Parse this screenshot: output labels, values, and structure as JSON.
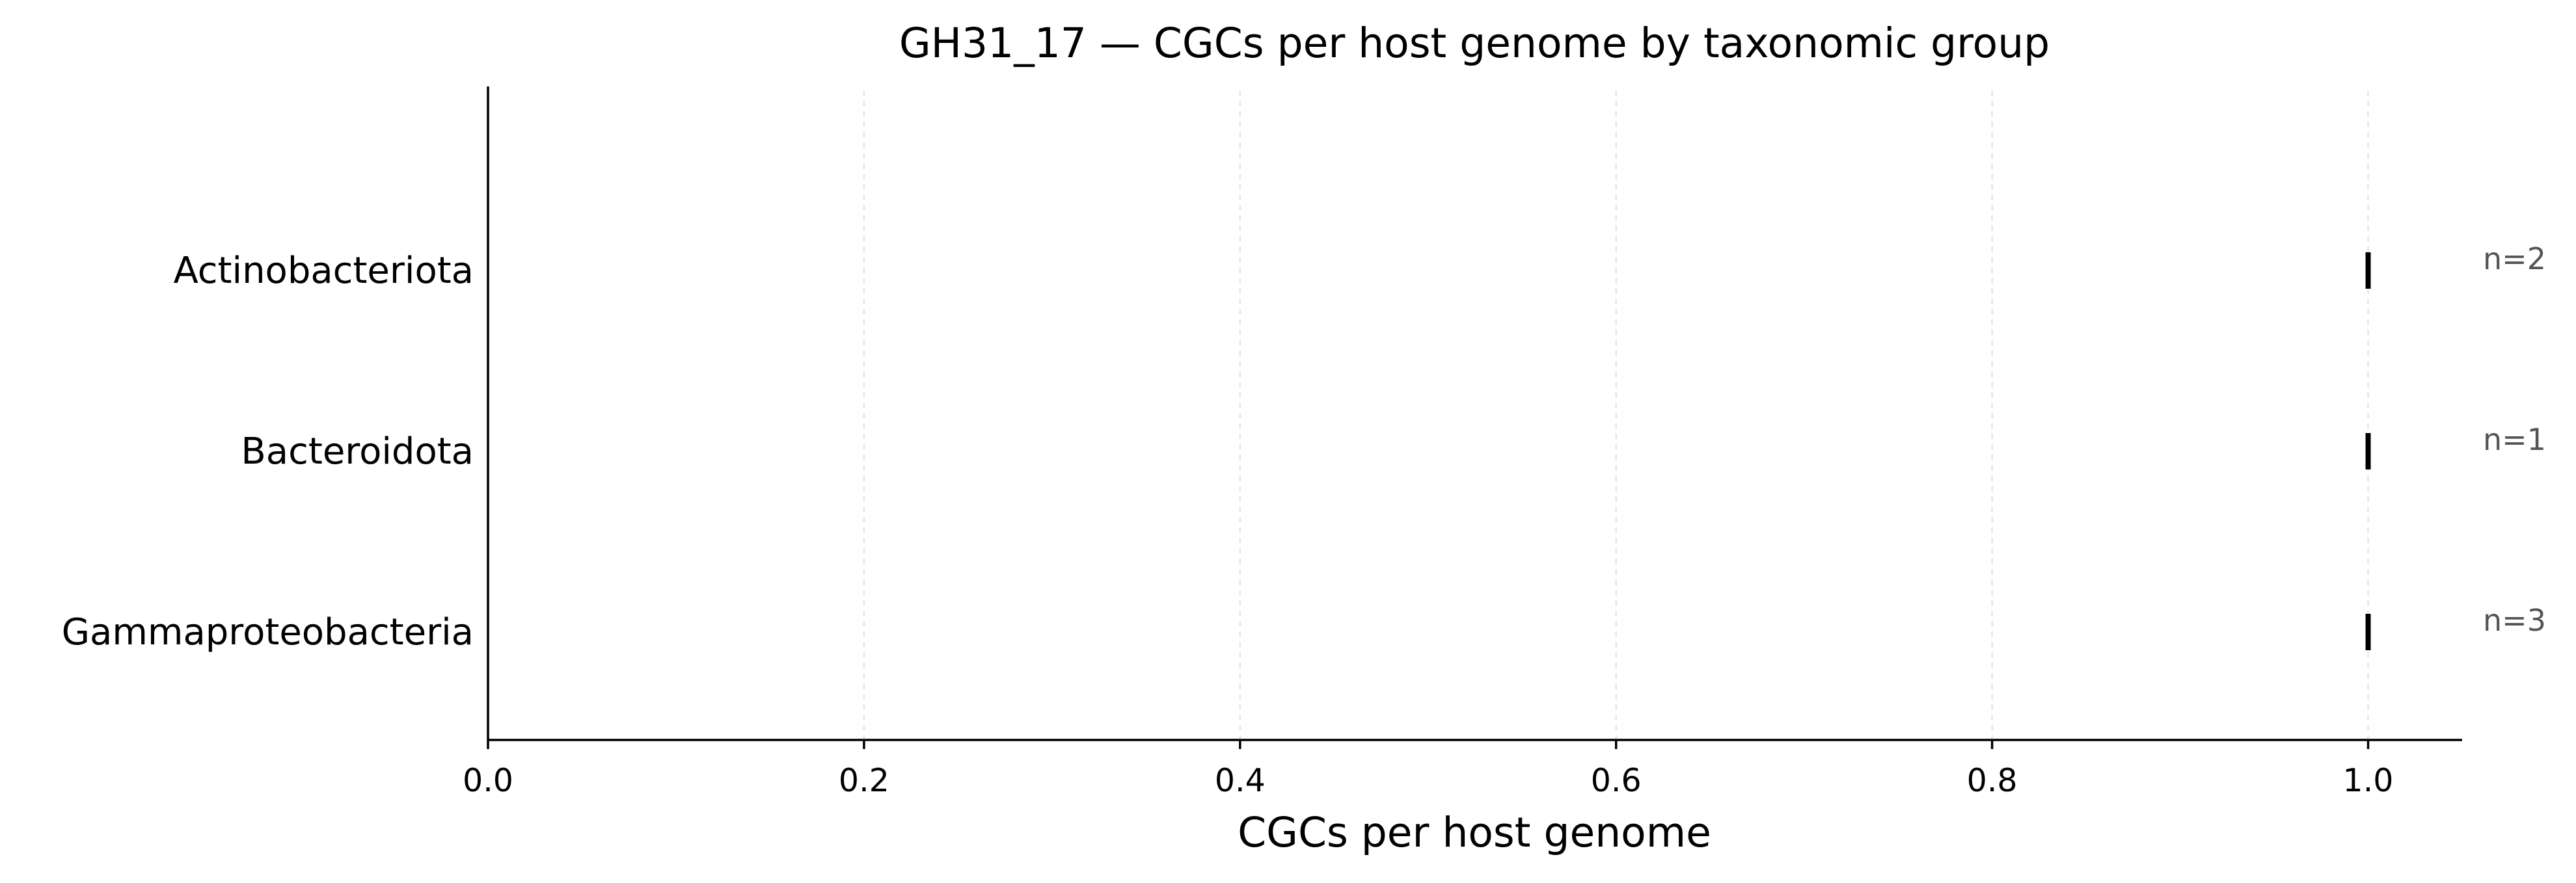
{
  "chart_data": {
    "type": "scatter",
    "title": "GH31_17 — CGCs per host genome by taxonomic group",
    "xlabel": "CGCs per host genome",
    "ylabel": "",
    "xlim": [
      0,
      1.05
    ],
    "xticks": [
      0.0,
      0.2,
      0.4,
      0.6,
      0.8,
      1.0
    ],
    "xtick_labels": [
      "0.0",
      "0.2",
      "0.4",
      "0.6",
      "0.8",
      "1.0"
    ],
    "grid": "vertical dashed",
    "categories": [
      "Actinobacteriota",
      "Bacteroidota",
      "Gammaproteobacteria"
    ],
    "values": [
      1.0,
      1.0,
      1.0
    ],
    "counts": [
      "n=2",
      "n=1",
      "n=3"
    ]
  }
}
